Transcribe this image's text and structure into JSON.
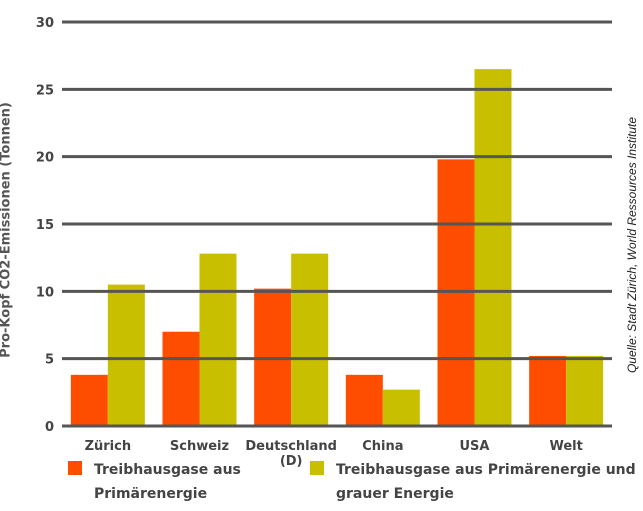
{
  "chart_data": {
    "type": "bar",
    "title": "",
    "ylabel": "Pro-Kopf CO2-Emissionen (Tonnen)",
    "xlabel": "",
    "ylim": [
      0,
      30
    ],
    "yticks": [
      "0",
      "5",
      "10",
      "15",
      "20",
      "25",
      "30"
    ],
    "ytick_values": [
      0,
      5,
      10,
      15,
      20,
      25,
      30
    ],
    "grid": true,
    "categories": [
      "Zürich",
      "Schweiz",
      "Deutschland (D)",
      "China",
      "USA",
      "Welt"
    ],
    "series": [
      {
        "name": "Treibhausgase aus Primärenergie",
        "color": "#ff4d00",
        "values": [
          3.8,
          7.0,
          10.2,
          3.8,
          19.8,
          5.2
        ]
      },
      {
        "name": "Treibhausgase aus Primärenergie und grauer Energie",
        "color": "#c7bf00",
        "values": [
          10.5,
          12.8,
          12.8,
          2.7,
          26.5,
          5.2
        ]
      }
    ],
    "legend_position": "bottom"
  },
  "source": "Quelle: Stadt Zürich, World Ressources Institute"
}
